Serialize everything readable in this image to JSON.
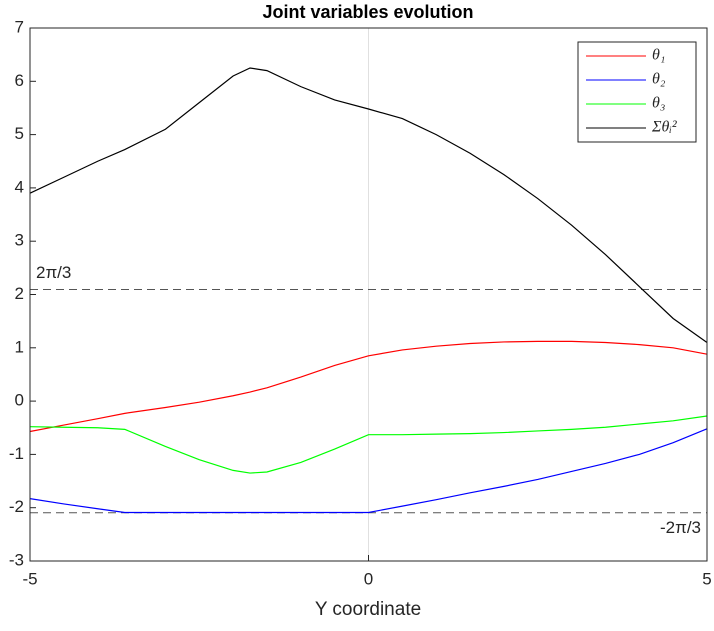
{
  "chart_data": {
    "type": "line",
    "title": "Joint variables evolution",
    "x_label": "Y coordinate",
    "x": [
      -5,
      -4.5,
      -4,
      -3.6,
      -3,
      -2.5,
      -2,
      -1.75,
      -1.5,
      -1,
      -0.5,
      0,
      0.5,
      1,
      1.5,
      2,
      2.5,
      3,
      3.5,
      4,
      4.5,
      5
    ],
    "series": [
      {
        "name": "θ₁",
        "color": "#ff0000",
        "values": [
          -0.57,
          -0.45,
          -0.33,
          -0.23,
          -0.12,
          -0.02,
          0.1,
          0.17,
          0.25,
          0.45,
          0.67,
          0.85,
          0.96,
          1.03,
          1.08,
          1.11,
          1.12,
          1.12,
          1.1,
          1.06,
          1.0,
          0.88
        ]
      },
      {
        "name": "θ₂",
        "color": "#0000ff",
        "values": [
          -1.83,
          -1.93,
          -2.02,
          -2.09,
          -2.09,
          -2.09,
          -2.09,
          -2.09,
          -2.09,
          -2.09,
          -2.09,
          -2.09,
          -1.97,
          -1.85,
          -1.72,
          -1.6,
          -1.47,
          -1.32,
          -1.17,
          -1.0,
          -0.78,
          -0.52
        ]
      },
      {
        "name": "θ₃",
        "color": "#00ff00",
        "values": [
          -0.48,
          -0.49,
          -0.5,
          -0.53,
          -0.85,
          -1.1,
          -1.3,
          -1.35,
          -1.33,
          -1.15,
          -0.9,
          -0.63,
          -0.63,
          -0.62,
          -0.61,
          -0.59,
          -0.56,
          -0.53,
          -0.49,
          -0.43,
          -0.37,
          -0.28
        ]
      },
      {
        "name": "Σθᵢ²",
        "color": "#000000",
        "values": [
          3.9,
          4.2,
          4.5,
          4.72,
          5.1,
          5.6,
          6.1,
          6.25,
          6.2,
          5.9,
          5.65,
          5.48,
          5.3,
          5.0,
          4.65,
          4.25,
          3.8,
          3.3,
          2.75,
          2.15,
          1.55,
          1.1
        ]
      }
    ],
    "xlim": [
      -5,
      5
    ],
    "xticks": [
      -5,
      0,
      5
    ],
    "ylim": [
      -3,
      7
    ],
    "yticks": [
      -3,
      -2,
      -1,
      0,
      1,
      2,
      3,
      4,
      5,
      6,
      7
    ],
    "zero_line": true,
    "hlines": [
      {
        "value": 2.094,
        "label": "2π/3"
      },
      {
        "value": -2.094,
        "label": "-2π/3"
      }
    ],
    "legend": "upper right"
  }
}
